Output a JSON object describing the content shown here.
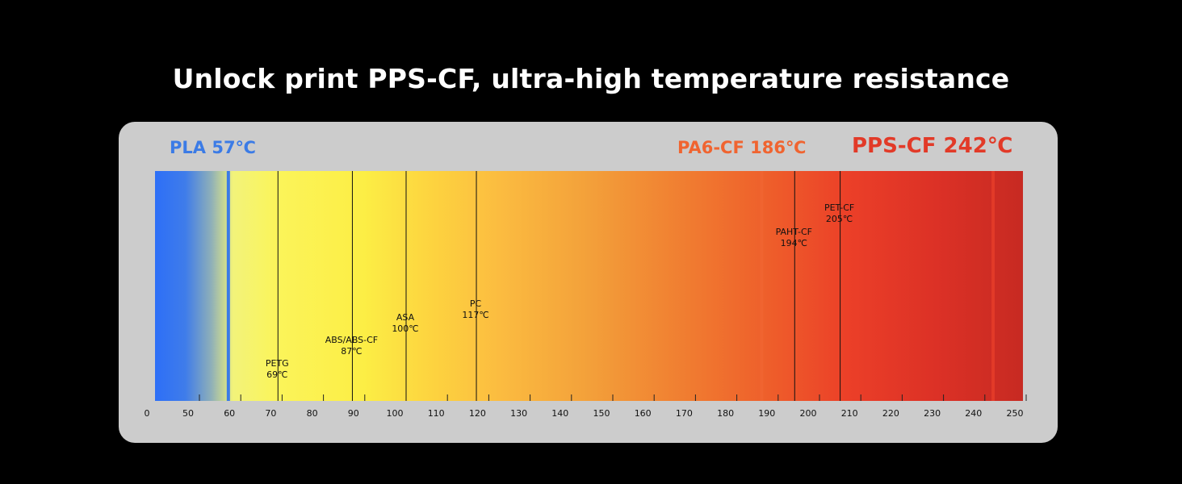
{
  "title": "Unlock print PPS-CF, ultra-high temperature resistance",
  "colors": {
    "background": "#000000",
    "panel": "#cccccc",
    "pla": "#3b7be6",
    "pa6": "#f06430",
    "pps": "#e23a28"
  },
  "chart_data": {
    "type": "bar",
    "title": "Unlock print PPS-CF, ultra-high temperature resistance",
    "xlabel": "",
    "ylabel": "",
    "axis_ticks": [
      {
        "value": 0,
        "label": "0"
      },
      {
        "value": 50,
        "label": "50"
      },
      {
        "value": 60,
        "label": "60"
      },
      {
        "value": 70,
        "label": "70"
      },
      {
        "value": 80,
        "label": "80"
      },
      {
        "value": 90,
        "label": "90"
      },
      {
        "value": 100,
        "label": "100"
      },
      {
        "value": 110,
        "label": "110"
      },
      {
        "value": 120,
        "label": "120"
      },
      {
        "value": 130,
        "label": "130"
      },
      {
        "value": 140,
        "label": "140"
      },
      {
        "value": 150,
        "label": "150"
      },
      {
        "value": 160,
        "label": "160"
      },
      {
        "value": 170,
        "label": "170"
      },
      {
        "value": 180,
        "label": "180"
      },
      {
        "value": 190,
        "label": "190"
      },
      {
        "value": 200,
        "label": "200"
      },
      {
        "value": 210,
        "label": "210"
      },
      {
        "value": 220,
        "label": "220"
      },
      {
        "value": 230,
        "label": "230"
      },
      {
        "value": 240,
        "label": "240"
      },
      {
        "value": 250,
        "label": "250"
      }
    ],
    "highlights": [
      {
        "name": "PLA",
        "value": 57,
        "label": "PLA 57℃",
        "color": "#3b7be6"
      },
      {
        "name": "PA6-CF",
        "value": 186,
        "label": "PA6-CF 186℃",
        "color": "#f06430"
      },
      {
        "name": "PPS-CF",
        "value": 242,
        "label": "PPS-CF 242℃",
        "color": "#e23a28"
      }
    ],
    "materials": [
      {
        "name": "PETG",
        "value": 69,
        "temp_label": "69℃"
      },
      {
        "name": "ABS/ABS-CF",
        "value": 87,
        "temp_label": "87℃"
      },
      {
        "name": "ASA",
        "value": 100,
        "temp_label": "100℃"
      },
      {
        "name": "PC",
        "value": 117,
        "temp_label": "117℃"
      },
      {
        "name": "PAHT-CF",
        "value": 194,
        "temp_label": "194℃"
      },
      {
        "name": "PET-CF",
        "value": 205,
        "temp_label": "205℃"
      }
    ]
  }
}
